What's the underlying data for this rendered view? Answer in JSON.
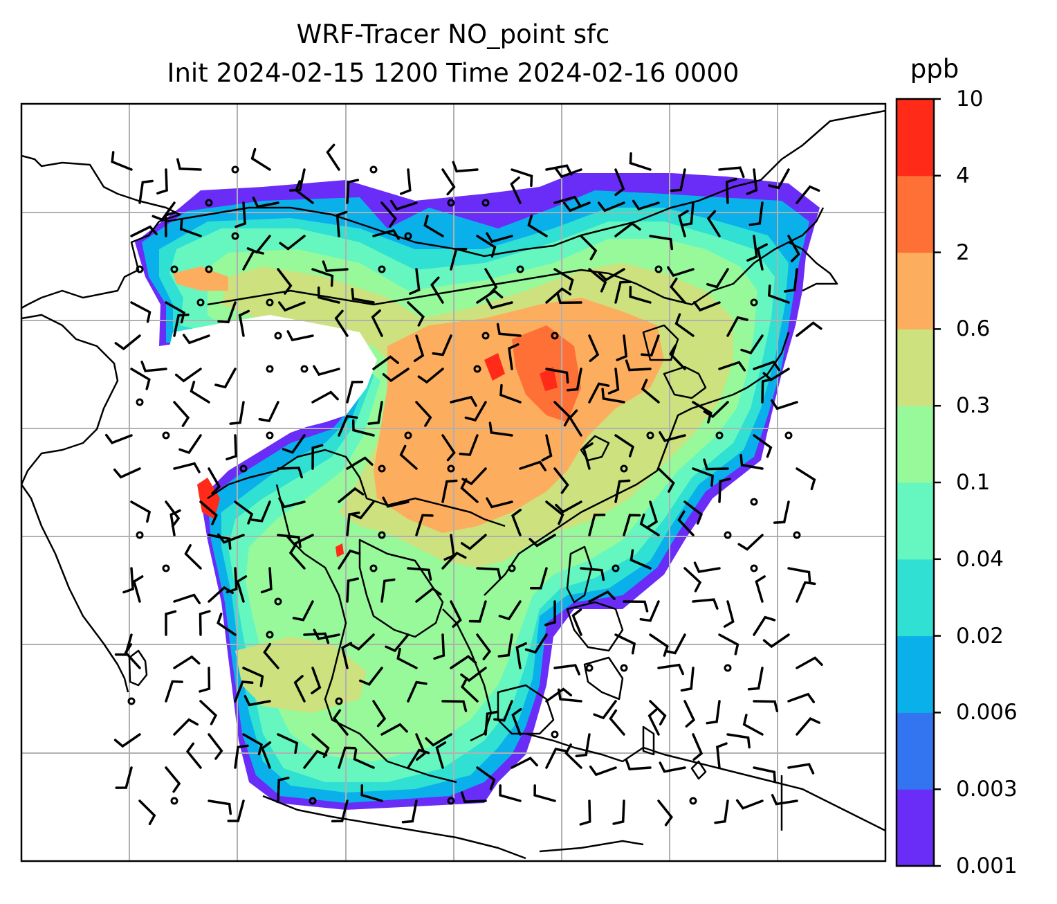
{
  "title_line1": "WRF-Tracer NO_point sfc",
  "title_line2": "Init 2024-02-15 1200 Time 2024-02-16 0000",
  "colorbar": {
    "unit": "ppb",
    "levels": [
      "0.001",
      "0.003",
      "0.006",
      "0.02",
      "0.04",
      "0.1",
      "0.3",
      "0.6",
      "2",
      "4",
      "10"
    ],
    "colors": [
      "#6a2cf7",
      "#3374f0",
      "#0ab0ea",
      "#2fe0d3",
      "#66f7c0",
      "#97f99a",
      "#cde17f",
      "#fdad5e",
      "#ff7036",
      "#ff2b18"
    ]
  },
  "map": {
    "field": "NO_point surface tracer concentration",
    "overlays": [
      "coastlines",
      "country-borders",
      "lat-lon-gridlines",
      "wind-barbs"
    ],
    "grid_color": "#b0b0b0"
  }
}
